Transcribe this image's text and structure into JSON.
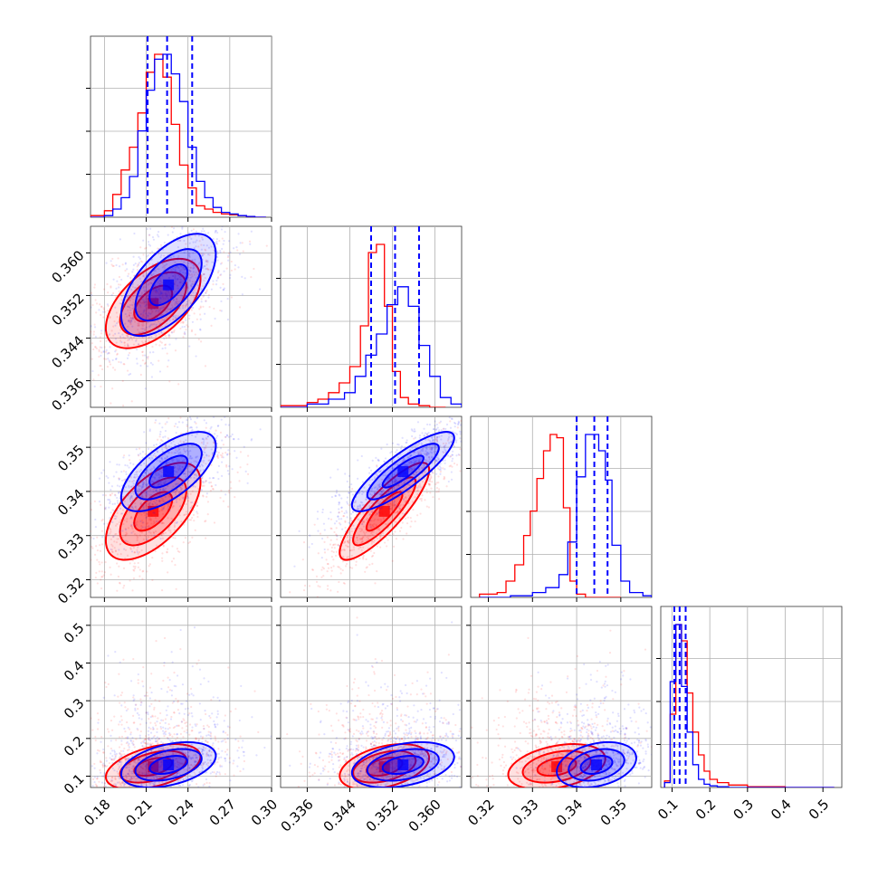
{
  "chart_data": {
    "type": "corner",
    "parameters": [
      {
        "range": [
          0.17,
          0.3
        ],
        "ticks": [
          0.18,
          0.21,
          0.24,
          0.27,
          0.3
        ],
        "tick_labels": [
          "0.18",
          "0.21",
          "0.24",
          "0.27",
          "0.30"
        ]
      },
      {
        "range": [
          0.331,
          0.365
        ],
        "ticks": [
          0.336,
          0.344,
          0.352,
          0.36
        ],
        "tick_labels": [
          "0.336",
          "0.344",
          "0.352",
          "0.360"
        ]
      },
      {
        "range": [
          0.316,
          0.357
        ],
        "ticks": [
          0.32,
          0.33,
          0.34,
          0.35
        ],
        "tick_labels": [
          "0.32",
          "0.33",
          "0.34",
          "0.35"
        ]
      },
      {
        "range": [
          0.07,
          0.55
        ],
        "ticks": [
          0.1,
          0.2,
          0.3,
          0.4,
          0.5
        ],
        "tick_labels": [
          "0.1",
          "0.2",
          "0.3",
          "0.4",
          "0.5"
        ]
      }
    ],
    "series": [
      {
        "color": "#ff0000",
        "hist_edges": [
          [
            0.17,
            0.18,
            0.186,
            0.192,
            0.198,
            0.204,
            0.21,
            0.216,
            0.222,
            0.228,
            0.234,
            0.24,
            0.246,
            0.252,
            0.258,
            0.264,
            0.27,
            0.276,
            0.282,
            0.288,
            0.296
          ],
          [
            0.331,
            0.336,
            0.338,
            0.34,
            0.342,
            0.344,
            0.346,
            0.3475,
            0.349,
            0.3505,
            0.352,
            0.3535,
            0.355,
            0.357,
            0.359,
            0.362
          ],
          [
            0.318,
            0.322,
            0.324,
            0.326,
            0.328,
            0.3295,
            0.331,
            0.3325,
            0.334,
            0.3355,
            0.337,
            0.3385,
            0.34,
            0.342,
            0.345,
            0.35
          ],
          [
            0.08,
            0.095,
            0.11,
            0.125,
            0.14,
            0.155,
            0.17,
            0.185,
            0.2,
            0.22,
            0.25,
            0.3,
            0.4,
            0.53
          ]
        ],
        "hist_values": [
          [
            0.01,
            0.04,
            0.14,
            0.29,
            0.43,
            0.64,
            0.89,
            1.0,
            0.86,
            0.57,
            0.32,
            0.18,
            0.07,
            0.05,
            0.03,
            0.02,
            0.015,
            0.01,
            0.005,
            0.0
          ],
          [
            0.01,
            0.03,
            0.05,
            0.09,
            0.15,
            0.25,
            0.5,
            0.95,
            1.0,
            0.62,
            0.22,
            0.06,
            0.02,
            0.01,
            0.0
          ],
          [
            0.02,
            0.03,
            0.1,
            0.2,
            0.38,
            0.53,
            0.73,
            0.9,
            1.0,
            0.98,
            0.55,
            0.1,
            0.02,
            0.0,
            0.0
          ],
          [
            0.04,
            0.45,
            1.0,
            0.9,
            0.58,
            0.34,
            0.2,
            0.1,
            0.05,
            0.03,
            0.015,
            0.005,
            0.0
          ]
        ],
        "centers": [
          [
            0.215,
            0.3505,
            0.3355,
            0.125
          ]
        ],
        "sigmas": [
          0.017,
          0.0042,
          0.0055,
          0.03
        ]
      },
      {
        "color": "#0000ff",
        "hist_edges": [
          [
            0.17,
            0.18,
            0.186,
            0.192,
            0.198,
            0.204,
            0.21,
            0.216,
            0.222,
            0.228,
            0.234,
            0.24,
            0.246,
            0.252,
            0.258,
            0.264,
            0.27,
            0.276,
            0.282,
            0.288,
            0.296
          ],
          [
            0.331,
            0.336,
            0.34,
            0.343,
            0.345,
            0.347,
            0.349,
            0.351,
            0.353,
            0.355,
            0.357,
            0.359,
            0.361,
            0.363,
            0.365
          ],
          [
            0.318,
            0.325,
            0.33,
            0.333,
            0.336,
            0.338,
            0.34,
            0.342,
            0.3435,
            0.345,
            0.3465,
            0.348,
            0.35,
            0.352,
            0.355,
            0.357
          ],
          [
            0.08,
            0.095,
            0.11,
            0.125,
            0.14,
            0.155,
            0.17,
            0.185,
            0.2,
            0.22,
            0.25,
            0.3,
            0.4,
            0.53
          ]
        ],
        "hist_values": [
          [
            0.0,
            0.01,
            0.05,
            0.12,
            0.25,
            0.53,
            0.78,
            0.97,
            1.0,
            0.88,
            0.71,
            0.43,
            0.22,
            0.12,
            0.06,
            0.03,
            0.02,
            0.01,
            0.005,
            0.0
          ],
          [
            0.0,
            0.02,
            0.05,
            0.09,
            0.19,
            0.32,
            0.45,
            0.63,
            0.74,
            0.62,
            0.38,
            0.19,
            0.06,
            0.02
          ],
          [
            0.0,
            0.01,
            0.03,
            0.06,
            0.14,
            0.34,
            0.74,
            1.0,
            1.0,
            0.9,
            0.72,
            0.32,
            0.1,
            0.03,
            0.01
          ],
          [
            0.03,
            0.65,
            1.0,
            0.62,
            0.34,
            0.14,
            0.05,
            0.02,
            0.01,
            0.005,
            0.0,
            0.0,
            0.0
          ]
        ],
        "centers": [
          [
            0.226,
            0.354,
            0.3445,
            0.13
          ]
        ],
        "sigmas": [
          0.017,
          0.0048,
          0.0045,
          0.03
        ]
      }
    ],
    "correlations": {
      "red": [
        [
          1,
          0.55,
          0.6,
          0.45
        ],
        [
          0.55,
          1,
          0.85,
          0.4
        ],
        [
          0.6,
          0.85,
          1,
          0.35
        ],
        [
          0.45,
          0.4,
          0.35,
          1
        ]
      ],
      "blue": [
        [
          1,
          0.6,
          0.65,
          0.4
        ],
        [
          0.6,
          1,
          0.85,
          0.35
        ],
        [
          0.65,
          0.85,
          1,
          0.3
        ],
        [
          0.4,
          0.35,
          0.3,
          1
        ]
      ]
    },
    "quantiles": [
      [
        0.211,
        0.225,
        0.243
      ],
      [
        0.348,
        0.3525,
        0.357
      ],
      [
        0.34,
        0.344,
        0.347
      ],
      [
        0.106,
        0.12,
        0.136
      ]
    ],
    "quantile_color": "#0000ff",
    "grid": true
  }
}
